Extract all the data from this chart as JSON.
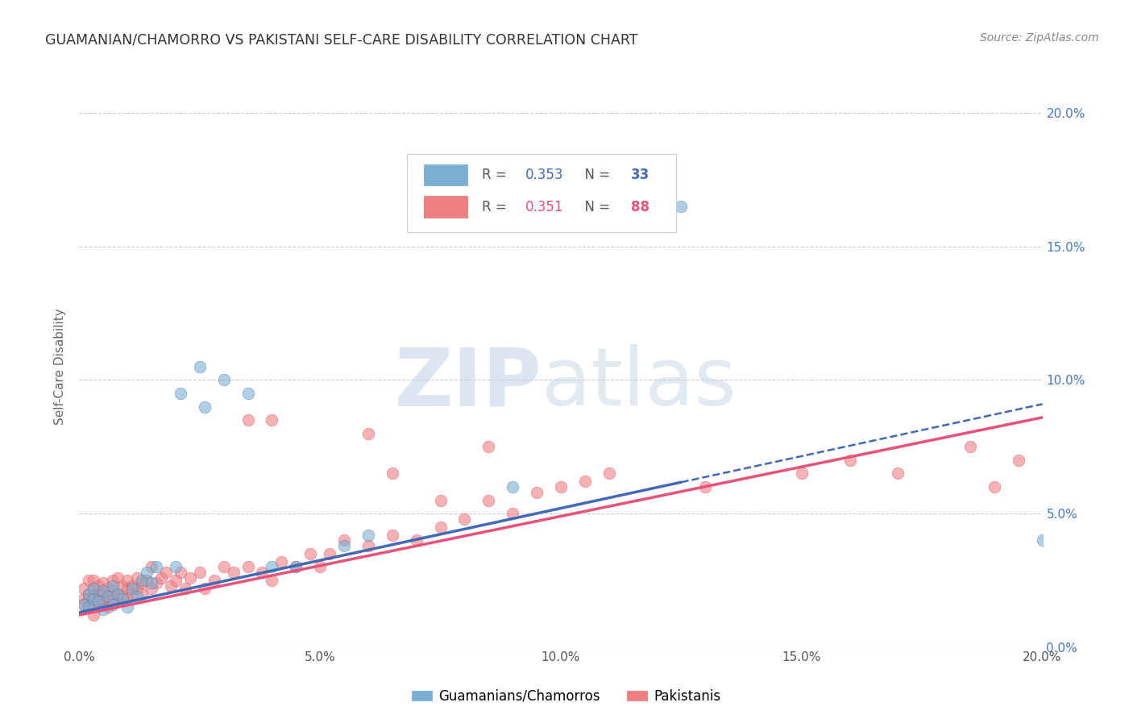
{
  "title": "GUAMANIAN/CHAMORRO VS PAKISTANI SELF-CARE DISABILITY CORRELATION CHART",
  "source": "Source: ZipAtlas.com",
  "ylabel": "Self-Care Disability",
  "xmin": 0.0,
  "xmax": 0.2,
  "ymin": 0.0,
  "ymax": 0.21,
  "legend_blue_r": "0.353",
  "legend_blue_n": "33",
  "legend_pink_r": "0.351",
  "legend_pink_n": "88",
  "blue_color": "#7BAFD4",
  "pink_color": "#F08080",
  "blue_line_color": "#4169B8",
  "pink_line_color": "#E8527A",
  "blue_line_intercept": 0.013,
  "blue_line_slope": 0.39,
  "blue_line_solid_end": 0.125,
  "pink_line_intercept": 0.012,
  "pink_line_slope": 0.37,
  "guamanian_x": [
    0.001,
    0.002,
    0.002,
    0.003,
    0.003,
    0.004,
    0.005,
    0.005,
    0.006,
    0.007,
    0.007,
    0.008,
    0.009,
    0.01,
    0.011,
    0.012,
    0.013,
    0.014,
    0.015,
    0.016,
    0.02,
    0.021,
    0.025,
    0.026,
    0.03,
    0.035,
    0.04,
    0.045,
    0.055,
    0.06,
    0.09,
    0.125,
    0.2
  ],
  "guamanian_y": [
    0.016,
    0.015,
    0.02,
    0.018,
    0.022,
    0.017,
    0.014,
    0.021,
    0.019,
    0.016,
    0.023,
    0.02,
    0.018,
    0.015,
    0.022,
    0.019,
    0.025,
    0.028,
    0.024,
    0.03,
    0.03,
    0.095,
    0.105,
    0.09,
    0.1,
    0.095,
    0.03,
    0.03,
    0.038,
    0.042,
    0.06,
    0.165,
    0.04
  ],
  "pakistani_x": [
    0.001,
    0.001,
    0.001,
    0.002,
    0.002,
    0.002,
    0.002,
    0.003,
    0.003,
    0.003,
    0.003,
    0.003,
    0.004,
    0.004,
    0.004,
    0.005,
    0.005,
    0.005,
    0.005,
    0.006,
    0.006,
    0.006,
    0.007,
    0.007,
    0.007,
    0.008,
    0.008,
    0.008,
    0.009,
    0.009,
    0.01,
    0.01,
    0.01,
    0.011,
    0.011,
    0.012,
    0.012,
    0.013,
    0.013,
    0.014,
    0.015,
    0.015,
    0.016,
    0.017,
    0.018,
    0.019,
    0.02,
    0.021,
    0.022,
    0.023,
    0.025,
    0.026,
    0.028,
    0.03,
    0.032,
    0.035,
    0.038,
    0.04,
    0.042,
    0.045,
    0.048,
    0.05,
    0.052,
    0.055,
    0.06,
    0.065,
    0.07,
    0.075,
    0.08,
    0.085,
    0.09,
    0.095,
    0.1,
    0.105,
    0.11,
    0.13,
    0.15,
    0.16,
    0.17,
    0.185,
    0.19,
    0.195,
    0.035,
    0.04,
    0.06,
    0.065,
    0.075,
    0.085
  ],
  "pakistani_y": [
    0.018,
    0.022,
    0.016,
    0.02,
    0.025,
    0.015,
    0.018,
    0.022,
    0.016,
    0.025,
    0.019,
    0.012,
    0.02,
    0.023,
    0.017,
    0.018,
    0.024,
    0.02,
    0.016,
    0.022,
    0.018,
    0.015,
    0.021,
    0.025,
    0.017,
    0.02,
    0.026,
    0.018,
    0.023,
    0.019,
    0.022,
    0.018,
    0.025,
    0.02,
    0.023,
    0.022,
    0.026,
    0.024,
    0.02,
    0.025,
    0.022,
    0.03,
    0.024,
    0.026,
    0.028,
    0.023,
    0.025,
    0.028,
    0.022,
    0.026,
    0.028,
    0.022,
    0.025,
    0.03,
    0.028,
    0.03,
    0.028,
    0.025,
    0.032,
    0.03,
    0.035,
    0.03,
    0.035,
    0.04,
    0.038,
    0.042,
    0.04,
    0.045,
    0.048,
    0.055,
    0.05,
    0.058,
    0.06,
    0.062,
    0.065,
    0.06,
    0.065,
    0.07,
    0.065,
    0.075,
    0.06,
    0.07,
    0.085,
    0.085,
    0.08,
    0.065,
    0.055,
    0.075
  ]
}
